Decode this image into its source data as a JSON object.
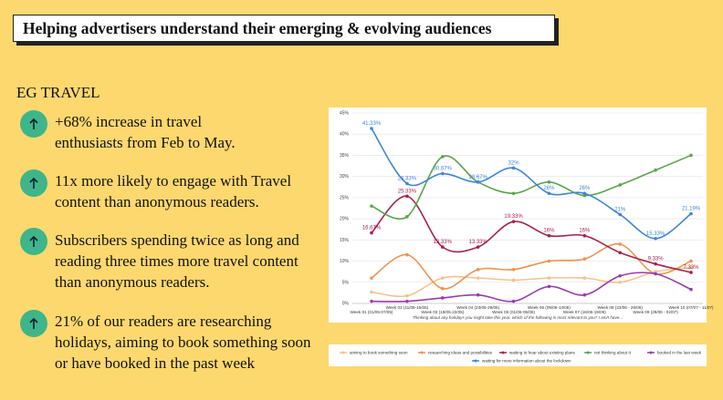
{
  "header": {
    "title": "Helping advertisers understand their emerging & evolving audiences"
  },
  "section": {
    "title": "EG TRAVEL"
  },
  "bullets": [
    "+68% increase in travel enthusiasts from Feb to May.",
    "11x more likely to engage with Travel content than anonymous readers.",
    "Subscribers spending twice as long and reading three times more travel content than anonymous readers.",
    "21% of our readers are researching holidays, aiming to book something soon or have booked in the past week"
  ],
  "chart_data": {
    "type": "line",
    "caption": "Thinking about any holidays you might take this year, which of the following is most relevant to you? I am/I have...",
    "categories": [
      "Week 01 (01/05-07/05)",
      "Week 02 (11/05-15/05)",
      "Week 03 (19/05-22/05)",
      "Week 04 (23/05-29/05)",
      "Week 05 (01/06-05/06)",
      "Week 06 (09/06-13/06)",
      "Week 07 (16/06-19/06)",
      "Week 08 (23/06 - 26/06)",
      "Week 09 (29/06 - 02/07)",
      "Week 10 (07/07 - 11/07)"
    ],
    "ylim": [
      0,
      45
    ],
    "yticks": [
      {
        "value": 0,
        "label": "0%"
      },
      {
        "value": 5,
        "label": "5%"
      },
      {
        "value": 10,
        "label": "10%"
      },
      {
        "value": 15,
        "label": "15%"
      },
      {
        "value": 20,
        "label": "20%"
      },
      {
        "value": 25,
        "label": "25%"
      },
      {
        "value": 30,
        "label": "30%"
      },
      {
        "value": 35,
        "label": "35%"
      },
      {
        "value": 40,
        "label": "40%"
      },
      {
        "value": 45,
        "label": "45%"
      }
    ],
    "grid": true,
    "series": [
      {
        "name": "aiming to book something soon",
        "color": "#f9c08a",
        "values": [
          2.7,
          1.8,
          6,
          6,
          5.5,
          6,
          6,
          5,
          7.5,
          8.5
        ]
      },
      {
        "name": "researching ideas and possibilities",
        "color": "#f0934e",
        "values": [
          6,
          11.5,
          3.5,
          8,
          8,
          10,
          10.5,
          14,
          7,
          10
        ]
      },
      {
        "name": "waiting to hear about existing plans",
        "color": "#a8234a",
        "values": [
          16.67,
          25.33,
          13.33,
          13.33,
          19.33,
          16,
          16,
          12,
          9.33,
          7.33
        ],
        "value_labels": [
          "16.67%",
          "25.33%",
          "13.33%",
          "13.33%",
          "19.33%",
          "16%",
          "16%",
          null,
          "9.33%",
          "7.33%"
        ]
      },
      {
        "name": "not thinking about it",
        "color": "#5aa54b",
        "values": [
          23,
          20.5,
          34.67,
          28.67,
          26,
          28.67,
          25.5,
          28,
          31.5,
          35
        ]
      },
      {
        "name": "booked in the last week",
        "color": "#9b3bb0",
        "values": [
          0.5,
          0.5,
          1.3,
          2,
          0.5,
          4,
          2,
          6.5,
          7,
          3.3
        ]
      },
      {
        "name": "waiting for more information about the lockdown",
        "color": "#3f86d6",
        "values": [
          41.33,
          28.33,
          30.67,
          28.67,
          32,
          26,
          26,
          21,
          15.33,
          21.19
        ],
        "value_labels": [
          "41.33%",
          "28.33%",
          "30.67%",
          "28.67%",
          "32%",
          "26%",
          "26%",
          "21%",
          "15.33%",
          "21.19%"
        ]
      }
    ]
  }
}
